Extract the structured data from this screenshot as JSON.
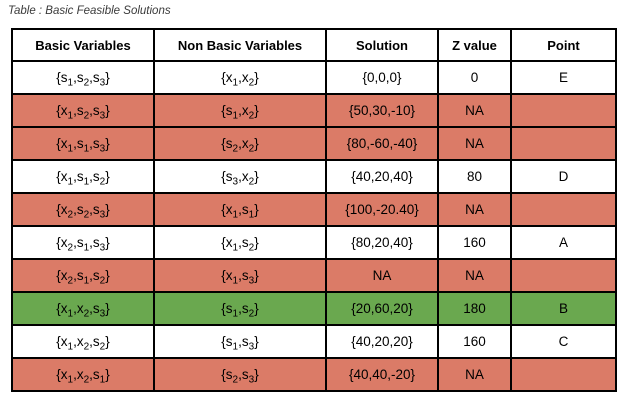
{
  "title": "Table : Basic Feasible Solutions",
  "table": {
    "headers": [
      "Basic Variables",
      "Non Basic Variables",
      "Solution",
      "Z value",
      "Point"
    ],
    "rows": [
      {
        "basic": "{s_1,s_2,s_3}",
        "nonbasic": "{x_1,x_2}",
        "solution": "{0,0,0}",
        "z": "0",
        "point": "E",
        "highlight": "none"
      },
      {
        "basic": "{x_1,s_2,s_3}",
        "nonbasic": "{s_1,x_2}",
        "solution": "{50,30,-10}",
        "z": "NA",
        "point": "",
        "highlight": "red"
      },
      {
        "basic": "{x_1,s_1,s_3}",
        "nonbasic": "{s_2,x_2}",
        "solution": "{80,-60,-40}",
        "z": "NA",
        "point": "",
        "highlight": "red"
      },
      {
        "basic": "{x_1,s_1,s_2}",
        "nonbasic": "{s_3,x_2}",
        "solution": "{40,20,40}",
        "z": "80",
        "point": "D",
        "highlight": "none"
      },
      {
        "basic": "{x_2,s_2,s_3}",
        "nonbasic": "{x_1,s_1}",
        "solution": "{100,-20.40}",
        "z": "NA",
        "point": "",
        "highlight": "red"
      },
      {
        "basic": "{x_2,s_1,s_3}",
        "nonbasic": "{x_1,s_2}",
        "solution": "{80,20,40}",
        "z": "160",
        "point": "A",
        "highlight": "none"
      },
      {
        "basic": "{x_2,s_1,s_2}",
        "nonbasic": "{x_1,s_3}",
        "solution": "NA",
        "z": "NA",
        "point": "",
        "highlight": "red"
      },
      {
        "basic": "{x_1,x_2,s_3}",
        "nonbasic": "{s_1,s_2}",
        "solution": "{20,60,20}",
        "z": "180",
        "point": "B",
        "highlight": "green"
      },
      {
        "basic": "{x_1,x_2,s_2}",
        "nonbasic": "{s_1,s_3}",
        "solution": "{40,20,20}",
        "z": "160",
        "point": "C",
        "highlight": "none"
      },
      {
        "basic": "{x_1,x_2,s_1}",
        "nonbasic": "{s_2,s_3}",
        "solution": "{40,40,-20}",
        "z": "NA",
        "point": "",
        "highlight": "red"
      }
    ],
    "colors": {
      "red": "#db7b67",
      "green": "#6aa84f",
      "border": "#000000",
      "background": "#ffffff"
    }
  }
}
